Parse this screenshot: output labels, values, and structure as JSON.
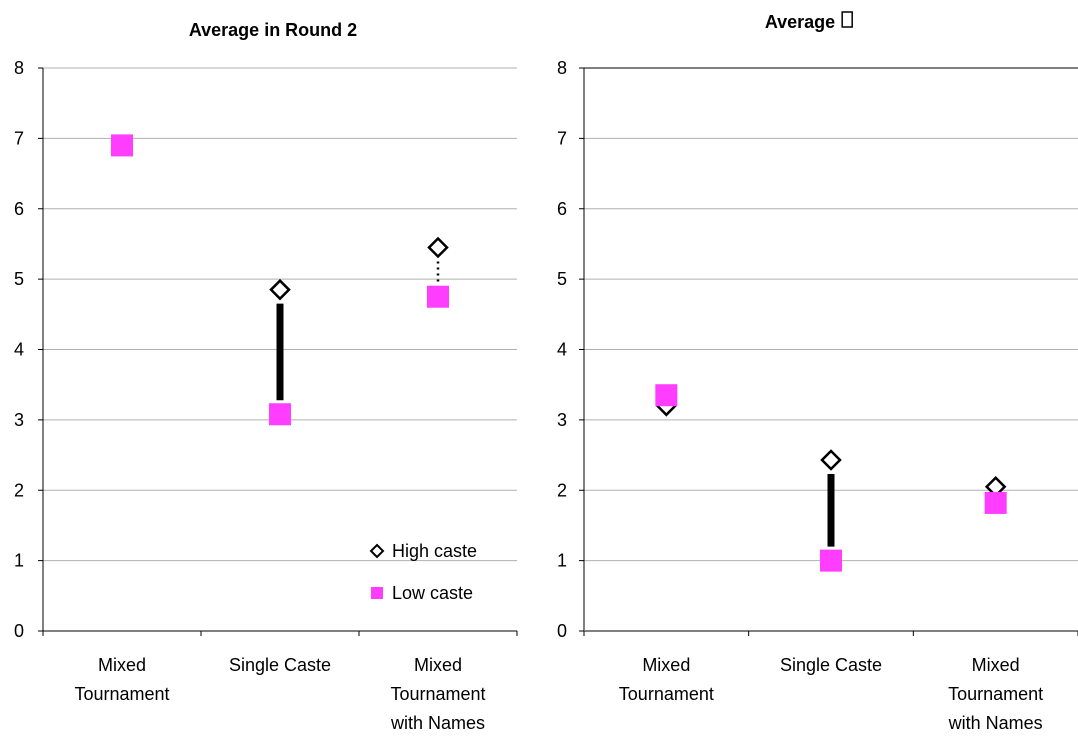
{
  "colors": {
    "high_caste_stroke": "#000000",
    "high_caste_fill": "#ffffff",
    "low_caste": "#ff3dff",
    "gridline": "#b0b0b0",
    "axis": "#808080"
  },
  "chart_data": [
    {
      "type": "scatter",
      "title": "Average in Round 2",
      "categories": [
        "Mixed Tournament",
        "Single Caste",
        "Mixed Tournament with Names"
      ],
      "category_label_lines": [
        [
          "Mixed",
          "Tournament"
        ],
        [
          "Single Caste"
        ],
        [
          "Mixed",
          "Tournament",
          "with Names"
        ]
      ],
      "ylim": [
        0,
        8
      ],
      "yticks": [
        "0",
        "1",
        "2",
        "3",
        "4",
        "5",
        "6",
        "7",
        "8"
      ],
      "grid": true,
      "legend": {
        "placement": "bottom-right",
        "entries": [
          "High caste",
          "Low caste"
        ]
      },
      "series": [
        {
          "name": "High caste",
          "marker": "diamond",
          "values": [
            6.9,
            4.85,
            5.45
          ]
        },
        {
          "name": "Low caste",
          "marker": "square",
          "values": [
            6.9,
            3.08,
            4.75
          ]
        }
      ],
      "connectors": [
        "none",
        "solid",
        "dotted"
      ]
    },
    {
      "type": "scatter",
      "title": "Average",
      "title_suffix_icon": "missing-glyph-icon",
      "categories": [
        "Mixed Tournament",
        "Single Caste",
        "Mixed Tournament with Names"
      ],
      "category_label_lines": [
        [
          "Mixed",
          "Tournament"
        ],
        [
          "Single Caste"
        ],
        [
          "Mixed",
          "Tournament",
          "with Names"
        ]
      ],
      "ylim": [
        0,
        8
      ],
      "yticks": [
        "0",
        "1",
        "2",
        "3",
        "4",
        "5",
        "6",
        "7",
        "8"
      ],
      "grid": true,
      "series": [
        {
          "name": "High caste",
          "marker": "diamond",
          "values": [
            3.2,
            2.43,
            2.05
          ]
        },
        {
          "name": "Low caste",
          "marker": "square",
          "values": [
            3.35,
            1.0,
            1.82
          ]
        }
      ],
      "connectors": [
        "none",
        "solid",
        "none"
      ]
    }
  ]
}
